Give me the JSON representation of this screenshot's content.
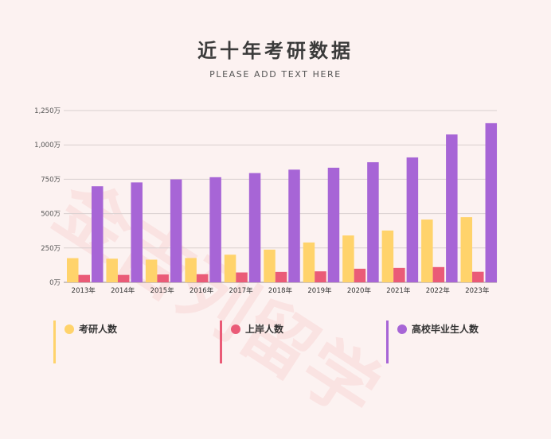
{
  "title": "近十年考研数据",
  "subtitle": "PLEASE ADD TEXT HERE",
  "watermark": "金吉列留学",
  "colors": {
    "background": "#fcf2f1",
    "series": [
      "#ffd36b",
      "#ea5b77",
      "#a765d6"
    ],
    "grid": "#d9d0d0",
    "axis": "#555555"
  },
  "chart_data": {
    "type": "bar",
    "title": "近十年考研数据",
    "subtitle": "PLEASE ADD TEXT HERE",
    "categories": [
      "2013年",
      "2014年",
      "2015年",
      "2016年",
      "2017年",
      "2018年",
      "2019年",
      "2020年",
      "2021年",
      "2022年",
      "2023年"
    ],
    "series": [
      {
        "name": "考研人数",
        "values": [
          176,
          172,
          165,
          177,
          201,
          238,
          290,
          341,
          377,
          457,
          474
        ]
      },
      {
        "name": "上岸人数",
        "values": [
          54,
          54,
          57,
          59,
          72,
          76,
          80,
          99,
          105,
          111,
          77
        ]
      },
      {
        "name": "高校毕业生人数",
        "values": [
          699,
          727,
          749,
          765,
          795,
          820,
          834,
          874,
          909,
          1076,
          1158
        ]
      }
    ],
    "yticks": [
      "0万",
      "250万",
      "500万",
      "750万",
      "1,000万",
      "1,250万"
    ],
    "ylim": [
      0,
      1250
    ],
    "grid": true,
    "legend_position": "bottom"
  },
  "legend": [
    {
      "label": "考研人数"
    },
    {
      "label": "上岸人数"
    },
    {
      "label": "高校毕业生人数"
    }
  ]
}
